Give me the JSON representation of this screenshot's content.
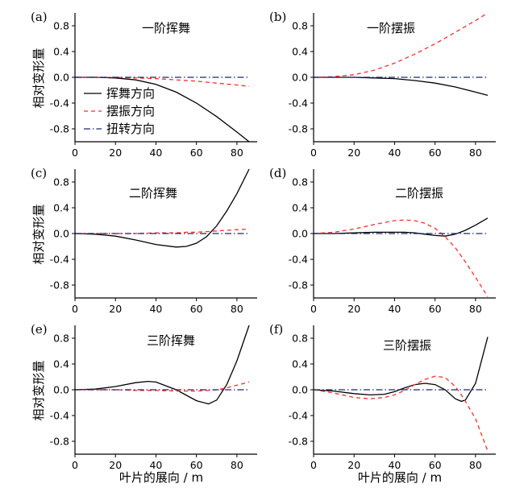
{
  "figure": {
    "ylabel": "相对变形量",
    "xlabel": "叶片的展向 / m"
  },
  "legend": [
    {
      "name": "挥舞方向",
      "color": "#000000",
      "dash": "solid"
    },
    {
      "name": "摆振方向",
      "color": "#ff2a2a",
      "dash": "dashed"
    },
    {
      "name": "扭转方向",
      "color": "#1a2a6a",
      "dash": "dashdot"
    }
  ],
  "chart_data": [
    {
      "type": "line",
      "panel": "(a)",
      "title": "一阶挥舞",
      "xlim": [
        0,
        90
      ],
      "ylim": [
        -1.0,
        1.0
      ],
      "xticks": [
        0,
        20,
        40,
        60,
        80
      ],
      "yticks": [
        -0.8,
        -0.4,
        0.0,
        0.4,
        0.8
      ],
      "ytick_labels": [
        "-0.8",
        "-0.4",
        "0.0",
        "0.4",
        "0.8"
      ],
      "x": [
        0,
        10,
        20,
        30,
        40,
        50,
        60,
        70,
        80,
        86
      ],
      "series": [
        {
          "name": "挥舞方向",
          "values": [
            0,
            0,
            -0.01,
            -0.04,
            -0.11,
            -0.23,
            -0.4,
            -0.61,
            -0.85,
            -1.0
          ]
        },
        {
          "name": "摆振方向",
          "values": [
            0,
            0,
            0,
            -0.01,
            -0.02,
            -0.04,
            -0.06,
            -0.09,
            -0.12,
            -0.14
          ]
        },
        {
          "name": "扭转方向",
          "values": [
            0,
            0,
            0,
            0,
            0,
            0,
            0,
            0,
            0,
            0
          ]
        }
      ]
    },
    {
      "type": "line",
      "panel": "(b)",
      "title": "一阶摆振",
      "xlim": [
        0,
        90
      ],
      "ylim": [
        -1.0,
        1.0
      ],
      "xticks": [
        0,
        20,
        40,
        60,
        80
      ],
      "yticks": [
        -0.8,
        -0.4,
        0.0,
        0.4,
        0.8
      ],
      "ytick_labels": [
        "-0.8",
        "-0.4",
        "0.0",
        "0.4",
        "0.8"
      ],
      "x": [
        0,
        10,
        20,
        30,
        40,
        50,
        60,
        70,
        80,
        86
      ],
      "series": [
        {
          "name": "挥舞方向",
          "values": [
            0,
            0,
            0,
            -0.01,
            -0.02,
            -0.05,
            -0.09,
            -0.15,
            -0.23,
            -0.28
          ]
        },
        {
          "name": "摆振方向",
          "values": [
            0,
            0.01,
            0.04,
            0.11,
            0.22,
            0.36,
            0.52,
            0.7,
            0.88,
            1.0
          ]
        },
        {
          "name": "扭转方向",
          "values": [
            0,
            0,
            0,
            0,
            0,
            0,
            0,
            0,
            0,
            0
          ]
        }
      ]
    },
    {
      "type": "line",
      "panel": "(c)",
      "title": "二阶挥舞",
      "xlim": [
        0,
        90
      ],
      "ylim": [
        -1.0,
        1.0
      ],
      "xticks": [
        0,
        20,
        40,
        60,
        80
      ],
      "yticks": [
        -0.8,
        -0.4,
        0.0,
        0.4,
        0.8
      ],
      "ytick_labels": [
        "-0.8",
        "-0.4",
        "0.0",
        "0.4",
        "0.8"
      ],
      "x": [
        0,
        10,
        20,
        30,
        40,
        50,
        55,
        60,
        65,
        70,
        75,
        80,
        86
      ],
      "series": [
        {
          "name": "挥舞方向",
          "values": [
            0,
            -0.01,
            -0.04,
            -0.1,
            -0.17,
            -0.21,
            -0.2,
            -0.15,
            -0.05,
            0.12,
            0.35,
            0.62,
            1.0
          ]
        },
        {
          "name": "摆振方向",
          "values": [
            0,
            0,
            0,
            0,
            0.01,
            0.01,
            0.02,
            0.02,
            0.03,
            0.04,
            0.05,
            0.06,
            0.07
          ]
        },
        {
          "name": "扭转方向",
          "values": [
            0,
            0,
            0,
            0,
            0,
            0,
            0,
            0,
            0,
            0,
            0,
            0,
            0
          ]
        }
      ]
    },
    {
      "type": "line",
      "panel": "(d)",
      "title": "二阶摆振",
      "xlim": [
        0,
        90
      ],
      "ylim": [
        -1.0,
        1.0
      ],
      "xticks": [
        0,
        20,
        40,
        60,
        80
      ],
      "yticks": [
        -0.8,
        -0.4,
        0.0,
        0.4,
        0.8
      ],
      "ytick_labels": [
        "-0.8",
        "-0.4",
        "0.0",
        "0.4",
        "0.8"
      ],
      "x": [
        0,
        10,
        20,
        30,
        40,
        45,
        50,
        55,
        60,
        65,
        70,
        75,
        80,
        86
      ],
      "series": [
        {
          "name": "挥舞方向",
          "values": [
            0,
            0,
            0.01,
            0.02,
            0.02,
            0.02,
            0.01,
            -0.01,
            -0.03,
            -0.04,
            -0.01,
            0.05,
            0.13,
            0.24
          ]
        },
        {
          "name": "摆振方向",
          "values": [
            0,
            0.02,
            0.07,
            0.14,
            0.2,
            0.21,
            0.2,
            0.16,
            0.08,
            -0.05,
            -0.22,
            -0.44,
            -0.68,
            -0.98
          ]
        },
        {
          "name": "扭转方向",
          "values": [
            0,
            0,
            0,
            0,
            0,
            0,
            0,
            0,
            0,
            0,
            0,
            0,
            0,
            0
          ]
        }
      ]
    },
    {
      "type": "line",
      "panel": "(e)",
      "title": "三阶挥舞",
      "xlim": [
        0,
        90
      ],
      "ylim": [
        -1.0,
        1.0
      ],
      "xticks": [
        0,
        20,
        40,
        60,
        80
      ],
      "yticks": [
        -0.8,
        -0.4,
        0.0,
        0.4,
        0.8
      ],
      "ytick_labels": [
        "-0.8",
        "-0.4",
        "0.0",
        "0.4",
        "0.8"
      ],
      "x": [
        0,
        10,
        20,
        30,
        36,
        40,
        50,
        60,
        66,
        70,
        75,
        80,
        86
      ],
      "series": [
        {
          "name": "挥舞方向",
          "values": [
            0,
            0.01,
            0.05,
            0.11,
            0.13,
            0.12,
            0.0,
            -0.17,
            -0.22,
            -0.16,
            0.08,
            0.45,
            1.0
          ]
        },
        {
          "name": "摆振方向",
          "values": [
            0,
            0,
            0,
            -0.01,
            -0.01,
            -0.01,
            -0.02,
            -0.02,
            -0.01,
            0,
            0.03,
            0.07,
            0.12
          ]
        },
        {
          "name": "扭转方向",
          "values": [
            0,
            0,
            0,
            0,
            0,
            0,
            0,
            0,
            0,
            0,
            0,
            0,
            0
          ]
        }
      ]
    },
    {
      "type": "line",
      "panel": "(f)",
      "title": "三阶摆振",
      "xlim": [
        0,
        90
      ],
      "ylim": [
        -1.0,
        1.0
      ],
      "xticks": [
        0,
        20,
        40,
        60,
        80
      ],
      "yticks": [
        -0.8,
        -0.4,
        0.0,
        0.4,
        0.8
      ],
      "ytick_labels": [
        "-0.8",
        "-0.4",
        "0.0",
        "0.4",
        "0.8"
      ],
      "x": [
        0,
        10,
        20,
        28,
        35,
        40,
        45,
        50,
        55,
        60,
        65,
        70,
        73,
        75,
        80,
        86
      ],
      "series": [
        {
          "name": "挥舞方向",
          "values": [
            0,
            -0.02,
            -0.06,
            -0.08,
            -0.07,
            -0.03,
            0.03,
            0.08,
            0.1,
            0.08,
            0.0,
            -0.14,
            -0.18,
            -0.16,
            0.1,
            0.82
          ]
        },
        {
          "name": "摆振方向",
          "values": [
            0,
            -0.05,
            -0.12,
            -0.14,
            -0.12,
            -0.08,
            -0.01,
            0.08,
            0.16,
            0.21,
            0.19,
            0.05,
            -0.08,
            -0.18,
            -0.45,
            -0.95
          ]
        },
        {
          "name": "扭转方向",
          "values": [
            0,
            0,
            0,
            0,
            0,
            0,
            0,
            0,
            0,
            0,
            0,
            0,
            0,
            0,
            0,
            0
          ]
        }
      ]
    }
  ]
}
